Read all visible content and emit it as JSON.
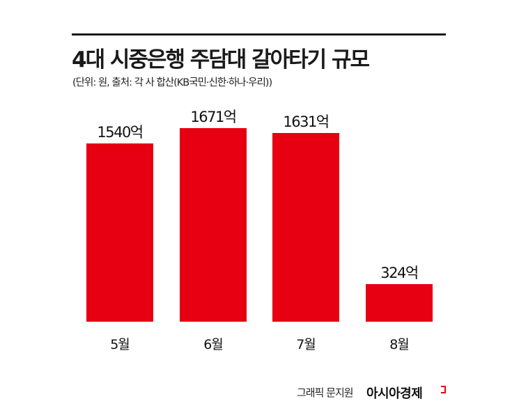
{
  "header": {
    "title": "4대 시중은행 주담대 갈아타기 규모",
    "subtitle": "(단위: 원, 출처: 각 사 합산(KB국민·신한·하나·우리))"
  },
  "footer": {
    "credit": "그래픽 문지원",
    "brand": "아시아경제"
  },
  "colors": {
    "bar": "#e60012",
    "text": "#1a1a1a",
    "background": "#ffffff"
  },
  "bars": [
    {
      "category": "5월",
      "label": "1540억"
    },
    {
      "category": "6월",
      "label": "1671억"
    },
    {
      "category": "7월",
      "label": "1631억"
    },
    {
      "category": "8월",
      "label": "324억"
    }
  ],
  "chart_data": {
    "type": "bar",
    "title": "4대 시중은행 주담대 갈아타기 규모",
    "subtitle": "(단위: 원, 출처: 각 사 합산(KB국민·신한·하나·우리))",
    "categories": [
      "5월",
      "6월",
      "7월",
      "8월"
    ],
    "values": [
      1540,
      1671,
      1631,
      324
    ],
    "value_unit": "억",
    "data_labels": [
      "1540억",
      "1671억",
      "1631억",
      "324억"
    ],
    "xlabel": "",
    "ylabel": "",
    "ylim": [
      0,
      1800
    ],
    "grid": false,
    "legend": null,
    "bar_color": "#e60012"
  }
}
